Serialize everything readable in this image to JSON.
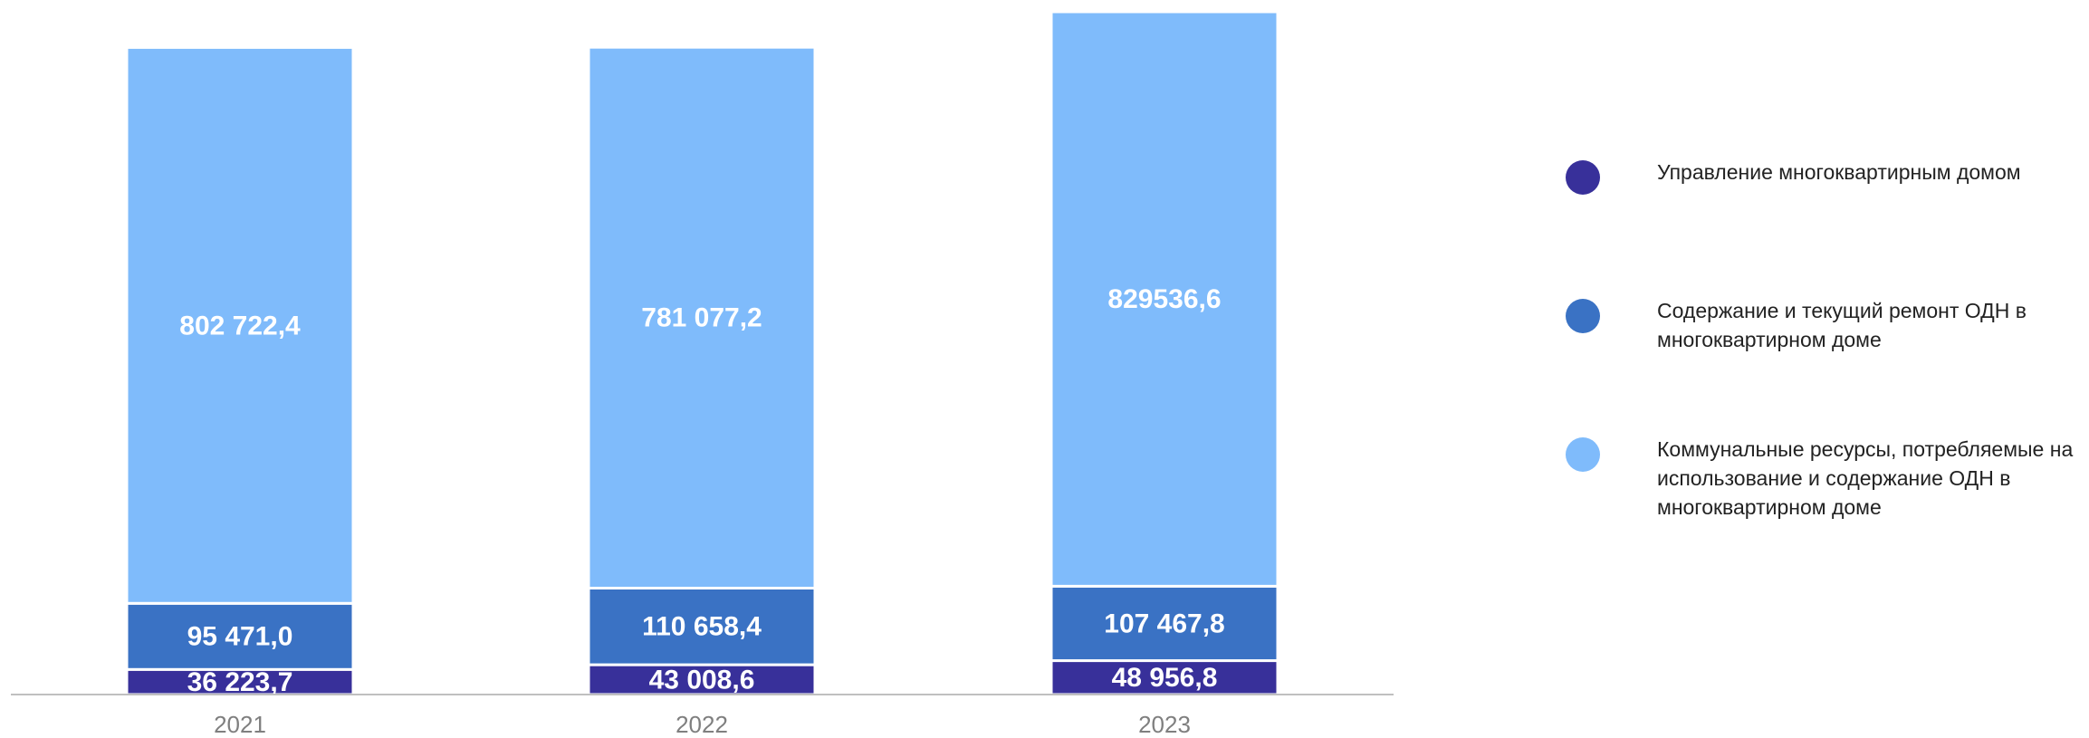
{
  "chart_data": {
    "type": "stacked_bar",
    "categories": [
      "2021",
      "2022",
      "2023"
    ],
    "series": [
      {
        "name": "Управление многоквартирным домом",
        "color": "#38309a",
        "values": [
          36223.7,
          43008.6,
          48956.8
        ],
        "value_labels": [
          "36 223,7",
          "43 008,6",
          "48 956,8"
        ]
      },
      {
        "name": "Содержание и текущий ремонт ОДН в многоквартирном доме",
        "color": "#3a72c4",
        "values": [
          95471.0,
          110658.4,
          107467.8
        ],
        "value_labels": [
          "95 471,0",
          "110 658,4",
          "107 467,8"
        ]
      },
      {
        "name": "Коммунальные ресурсы, потребляемые на использование и содержание ОДН в многоквартирном доме",
        "color": "#7fbbfb",
        "values": [
          802722.4,
          781077.2,
          829536.6
        ],
        "value_labels": [
          "802 722,4",
          "781 077,2",
          "829536,6"
        ]
      }
    ]
  }
}
